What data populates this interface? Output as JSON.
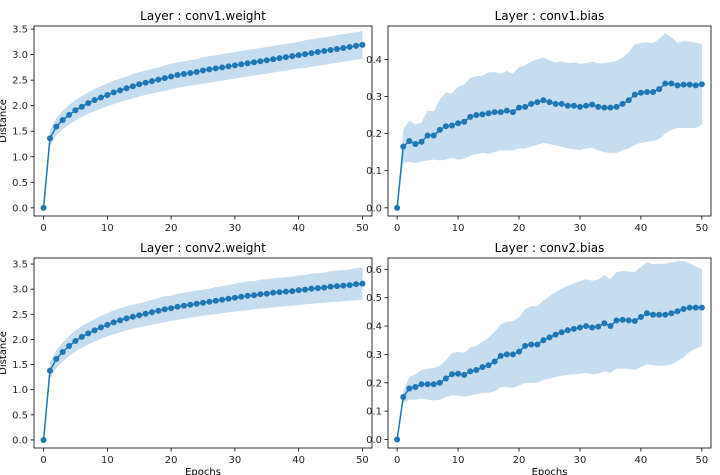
{
  "chart_data": [
    {
      "type": "line",
      "title": "Layer : conv1.weight",
      "xlabel": "",
      "ylabel": "Distance",
      "xlim": [
        -1.5,
        51.5
      ],
      "ylim": [
        -0.16,
        3.56
      ],
      "xticks": [
        0,
        10,
        20,
        30,
        40,
        50
      ],
      "yticks": [
        0.0,
        0.5,
        1.0,
        1.5,
        2.0,
        2.5,
        3.0,
        3.5
      ],
      "ytick_labels": [
        "0.0",
        "0.5",
        "1.0",
        "1.5",
        "2.0",
        "2.5",
        "3.0",
        "3.5"
      ],
      "grid": false,
      "color": "#1f77b4",
      "band_color": "#c6dcef",
      "x": [
        0,
        1,
        2,
        3,
        4,
        5,
        6,
        7,
        8,
        9,
        10,
        11,
        12,
        13,
        14,
        15,
        16,
        17,
        18,
        19,
        20,
        21,
        22,
        23,
        24,
        25,
        26,
        27,
        28,
        29,
        30,
        31,
        32,
        33,
        34,
        35,
        36,
        37,
        38,
        39,
        40,
        41,
        42,
        43,
        44,
        45,
        46,
        47,
        48,
        49,
        50
      ],
      "y": [
        0,
        1.36,
        1.59,
        1.72,
        1.82,
        1.91,
        1.98,
        2.05,
        2.11,
        2.16,
        2.21,
        2.26,
        2.3,
        2.34,
        2.38,
        2.42,
        2.45,
        2.48,
        2.51,
        2.54,
        2.57,
        2.6,
        2.62,
        2.64,
        2.66,
        2.69,
        2.71,
        2.73,
        2.75,
        2.77,
        2.79,
        2.81,
        2.83,
        2.85,
        2.87,
        2.89,
        2.91,
        2.93,
        2.95,
        2.97,
        2.99,
        3.01,
        3.03,
        3.05,
        3.07,
        3.09,
        3.11,
        3.13,
        3.15,
        3.17,
        3.19
      ],
      "lower": [
        0,
        1.2,
        1.42,
        1.54,
        1.63,
        1.71,
        1.78,
        1.84,
        1.89,
        1.94,
        1.99,
        2.03,
        2.07,
        2.11,
        2.14,
        2.18,
        2.21,
        2.24,
        2.27,
        2.29,
        2.32,
        2.35,
        2.37,
        2.39,
        2.41,
        2.43,
        2.45,
        2.47,
        2.49,
        2.51,
        2.53,
        2.55,
        2.57,
        2.59,
        2.61,
        2.63,
        2.65,
        2.67,
        2.69,
        2.71,
        2.73,
        2.74,
        2.76,
        2.78,
        2.8,
        2.82,
        2.84,
        2.86,
        2.88,
        2.9,
        2.92
      ],
      "upper": [
        0,
        1.52,
        1.76,
        1.9,
        2.01,
        2.11,
        2.19,
        2.26,
        2.33,
        2.38,
        2.44,
        2.49,
        2.53,
        2.57,
        2.62,
        2.66,
        2.69,
        2.72,
        2.75,
        2.79,
        2.82,
        2.85,
        2.87,
        2.89,
        2.91,
        2.95,
        2.97,
        2.99,
        3.01,
        3.03,
        3.05,
        3.07,
        3.09,
        3.11,
        3.13,
        3.15,
        3.17,
        3.19,
        3.21,
        3.23,
        3.25,
        3.28,
        3.3,
        3.32,
        3.34,
        3.36,
        3.38,
        3.4,
        3.42,
        3.44,
        3.46
      ]
    },
    {
      "type": "line",
      "title": "Layer : conv1.bias",
      "xlabel": "",
      "ylabel": "",
      "xlim": [
        -1.5,
        51.5
      ],
      "ylim": [
        -0.022,
        0.49
      ],
      "xticks": [
        0,
        10,
        20,
        30,
        40,
        50
      ],
      "yticks": [
        0.0,
        0.1,
        0.2,
        0.3,
        0.4
      ],
      "ytick_labels": [
        "0.0",
        "0.1",
        "0.2",
        "0.3",
        "0.4"
      ],
      "grid": false,
      "color": "#1f77b4",
      "band_color": "#c6dcef",
      "x": [
        0,
        1,
        2,
        3,
        4,
        5,
        6,
        7,
        8,
        9,
        10,
        11,
        12,
        13,
        14,
        15,
        16,
        17,
        18,
        19,
        20,
        21,
        22,
        23,
        24,
        25,
        26,
        27,
        28,
        29,
        30,
        31,
        32,
        33,
        34,
        35,
        36,
        37,
        38,
        39,
        40,
        41,
        42,
        43,
        44,
        45,
        46,
        47,
        48,
        49,
        50
      ],
      "y": [
        0,
        0.165,
        0.18,
        0.172,
        0.178,
        0.195,
        0.195,
        0.21,
        0.22,
        0.222,
        0.228,
        0.232,
        0.245,
        0.25,
        0.252,
        0.255,
        0.258,
        0.258,
        0.262,
        0.258,
        0.27,
        0.272,
        0.28,
        0.285,
        0.29,
        0.285,
        0.28,
        0.28,
        0.275,
        0.275,
        0.272,
        0.275,
        0.278,
        0.272,
        0.27,
        0.27,
        0.272,
        0.28,
        0.29,
        0.305,
        0.31,
        0.312,
        0.312,
        0.32,
        0.335,
        0.335,
        0.33,
        0.332,
        0.332,
        0.33,
        0.333
      ],
      "lower": [
        0,
        0.12,
        0.125,
        0.12,
        0.125,
        0.128,
        0.13,
        0.128,
        0.13,
        0.135,
        0.13,
        0.132,
        0.14,
        0.145,
        0.148,
        0.145,
        0.15,
        0.155,
        0.155,
        0.155,
        0.16,
        0.16,
        0.165,
        0.17,
        0.175,
        0.172,
        0.168,
        0.165,
        0.16,
        0.158,
        0.156,
        0.16,
        0.162,
        0.155,
        0.15,
        0.148,
        0.148,
        0.155,
        0.16,
        0.17,
        0.175,
        0.178,
        0.18,
        0.185,
        0.2,
        0.21,
        0.215,
        0.215,
        0.215,
        0.215,
        0.225
      ],
      "upper": [
        0,
        0.21,
        0.235,
        0.225,
        0.23,
        0.262,
        0.26,
        0.292,
        0.31,
        0.309,
        0.326,
        0.332,
        0.35,
        0.355,
        0.356,
        0.365,
        0.366,
        0.361,
        0.369,
        0.361,
        0.38,
        0.384,
        0.395,
        0.4,
        0.405,
        0.398,
        0.392,
        0.395,
        0.39,
        0.392,
        0.388,
        0.39,
        0.394,
        0.389,
        0.39,
        0.392,
        0.396,
        0.405,
        0.42,
        0.44,
        0.445,
        0.446,
        0.444,
        0.455,
        0.47,
        0.46,
        0.445,
        0.449,
        0.449,
        0.445,
        0.441
      ]
    },
    {
      "type": "line",
      "title": "Layer : conv2.weight",
      "xlabel": "Epochs",
      "ylabel": "Distance",
      "xlim": [
        -1.5,
        51.5
      ],
      "ylim": [
        -0.16,
        3.62
      ],
      "xticks": [
        0,
        10,
        20,
        30,
        40,
        50
      ],
      "yticks": [
        0.0,
        0.5,
        1.0,
        1.5,
        2.0,
        2.5,
        3.0,
        3.5
      ],
      "ytick_labels": [
        "0.0",
        "0.5",
        "1.0",
        "1.5",
        "2.0",
        "2.5",
        "3.0",
        "3.5"
      ],
      "grid": false,
      "color": "#1f77b4",
      "band_color": "#c6dcef",
      "x": [
        0,
        1,
        2,
        3,
        4,
        5,
        6,
        7,
        8,
        9,
        10,
        11,
        12,
        13,
        14,
        15,
        16,
        17,
        18,
        19,
        20,
        21,
        22,
        23,
        24,
        25,
        26,
        27,
        28,
        29,
        30,
        31,
        32,
        33,
        34,
        35,
        36,
        37,
        38,
        39,
        40,
        41,
        42,
        43,
        44,
        45,
        46,
        47,
        48,
        49,
        50
      ],
      "y": [
        0,
        1.38,
        1.61,
        1.75,
        1.87,
        1.97,
        2.05,
        2.12,
        2.18,
        2.24,
        2.29,
        2.34,
        2.38,
        2.42,
        2.45,
        2.48,
        2.51,
        2.54,
        2.57,
        2.6,
        2.62,
        2.65,
        2.67,
        2.69,
        2.71,
        2.73,
        2.75,
        2.77,
        2.79,
        2.81,
        2.83,
        2.85,
        2.87,
        2.88,
        2.9,
        2.91,
        2.93,
        2.94,
        2.95,
        2.96,
        2.98,
        2.99,
        3.01,
        3.02,
        3.03,
        3.05,
        3.06,
        3.07,
        3.08,
        3.1,
        3.11
      ],
      "lower": [
        0,
        1.22,
        1.43,
        1.56,
        1.67,
        1.76,
        1.83,
        1.9,
        1.96,
        2.01,
        2.06,
        2.1,
        2.14,
        2.18,
        2.21,
        2.24,
        2.27,
        2.29,
        2.32,
        2.34,
        2.37,
        2.39,
        2.41,
        2.43,
        2.45,
        2.47,
        2.49,
        2.5,
        2.52,
        2.54,
        2.55,
        2.57,
        2.58,
        2.6,
        2.61,
        2.62,
        2.64,
        2.65,
        2.66,
        2.67,
        2.68,
        2.7,
        2.71,
        2.72,
        2.73,
        2.74,
        2.75,
        2.76,
        2.77,
        2.78,
        2.79
      ],
      "upper": [
        0,
        1.54,
        1.79,
        1.94,
        2.07,
        2.18,
        2.27,
        2.34,
        2.4,
        2.47,
        2.52,
        2.58,
        2.62,
        2.66,
        2.69,
        2.72,
        2.75,
        2.79,
        2.82,
        2.86,
        2.87,
        2.91,
        2.93,
        2.95,
        2.97,
        2.99,
        3.01,
        3.04,
        3.06,
        3.08,
        3.11,
        3.13,
        3.16,
        3.16,
        3.19,
        3.2,
        3.22,
        3.23,
        3.24,
        3.25,
        3.28,
        3.28,
        3.31,
        3.32,
        3.33,
        3.36,
        3.37,
        3.38,
        3.39,
        3.42,
        3.43
      ]
    },
    {
      "type": "line",
      "title": "Layer : conv2.bias",
      "xlabel": "Epochs",
      "ylabel": "",
      "xlim": [
        -1.5,
        51.5
      ],
      "ylim": [
        -0.03,
        0.64
      ],
      "xticks": [
        0,
        10,
        20,
        30,
        40,
        50
      ],
      "yticks": [
        0.0,
        0.1,
        0.2,
        0.3,
        0.4,
        0.5,
        0.6
      ],
      "ytick_labels": [
        "0.0",
        "0.1",
        "0.2",
        "0.3",
        "0.4",
        "0.5",
        "0.6"
      ],
      "grid": false,
      "color": "#1f77b4",
      "band_color": "#c6dcef",
      "x": [
        0,
        1,
        2,
        3,
        4,
        5,
        6,
        7,
        8,
        9,
        10,
        11,
        12,
        13,
        14,
        15,
        16,
        17,
        18,
        19,
        20,
        21,
        22,
        23,
        24,
        25,
        26,
        27,
        28,
        29,
        30,
        31,
        32,
        33,
        34,
        35,
        36,
        37,
        38,
        39,
        40,
        41,
        42,
        43,
        44,
        45,
        46,
        47,
        48,
        49,
        50
      ],
      "y": [
        0,
        0.15,
        0.18,
        0.185,
        0.195,
        0.195,
        0.195,
        0.2,
        0.215,
        0.23,
        0.232,
        0.228,
        0.24,
        0.245,
        0.255,
        0.262,
        0.275,
        0.295,
        0.3,
        0.3,
        0.31,
        0.33,
        0.335,
        0.335,
        0.35,
        0.36,
        0.37,
        0.378,
        0.385,
        0.39,
        0.395,
        0.4,
        0.395,
        0.398,
        0.41,
        0.4,
        0.42,
        0.422,
        0.42,
        0.418,
        0.432,
        0.445,
        0.44,
        0.44,
        0.44,
        0.445,
        0.452,
        0.46,
        0.465,
        0.465,
        0.465
      ],
      "lower": [
        0,
        0.13,
        0.14,
        0.14,
        0.145,
        0.14,
        0.138,
        0.14,
        0.15,
        0.155,
        0.155,
        0.15,
        0.155,
        0.16,
        0.165,
        0.165,
        0.17,
        0.185,
        0.185,
        0.182,
        0.19,
        0.2,
        0.2,
        0.2,
        0.21,
        0.215,
        0.22,
        0.225,
        0.228,
        0.23,
        0.232,
        0.235,
        0.23,
        0.232,
        0.24,
        0.235,
        0.25,
        0.25,
        0.248,
        0.245,
        0.255,
        0.265,
        0.262,
        0.26,
        0.26,
        0.265,
        0.275,
        0.29,
        0.31,
        0.32,
        0.33
      ],
      "upper": [
        0,
        0.17,
        0.22,
        0.23,
        0.245,
        0.25,
        0.252,
        0.26,
        0.28,
        0.305,
        0.309,
        0.306,
        0.325,
        0.33,
        0.345,
        0.359,
        0.38,
        0.405,
        0.415,
        0.418,
        0.43,
        0.46,
        0.47,
        0.47,
        0.49,
        0.505,
        0.52,
        0.531,
        0.542,
        0.55,
        0.558,
        0.565,
        0.56,
        0.564,
        0.58,
        0.565,
        0.59,
        0.594,
        0.592,
        0.591,
        0.609,
        0.625,
        0.618,
        0.62,
        0.62,
        0.625,
        0.629,
        0.63,
        0.62,
        0.61,
        0.6
      ]
    }
  ]
}
